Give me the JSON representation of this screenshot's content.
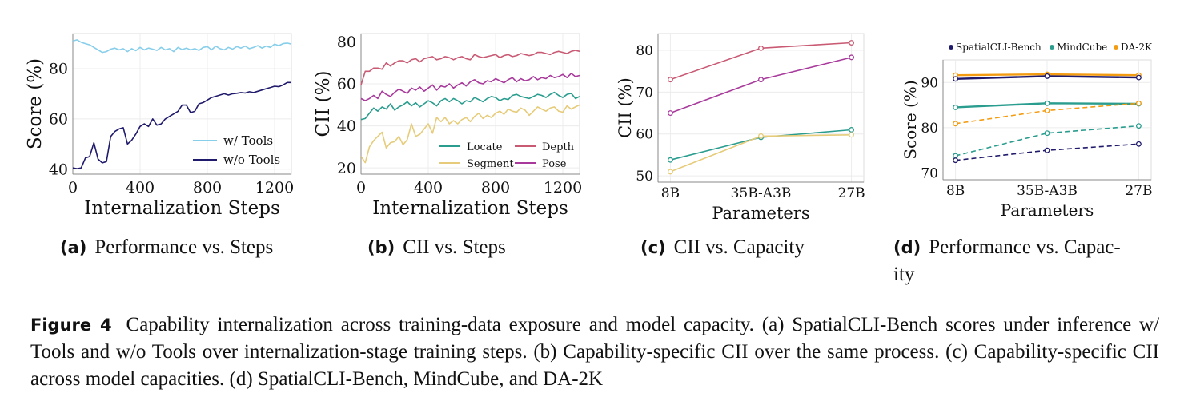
{
  "figure": {
    "tag": "Figure 4",
    "caption_lines": [
      "Capability internalization across training-data exposure and model capacity. (a) SpatialCLI-Bench scores",
      "under inference w/ Tools and w/o Tools over internalization-stage training steps. (b) Capability-specific CII over",
      "the same process. (c) Capability-specific CII across model capacities. (d) SpatialCLI-Bench, MindCube, and DA-2K"
    ]
  },
  "subfigures": [
    {
      "letter": "(a)",
      "title": "Performance vs. Steps"
    },
    {
      "letter": "(b)",
      "title": "CII vs. Steps"
    },
    {
      "letter": "(c)",
      "title": "CII vs. Capacity"
    },
    {
      "letter": "(d)",
      "title_line1": "Performance vs. Capac-",
      "title_line2": "ity"
    }
  ],
  "chart_data": [
    {
      "type": "line",
      "xlabel": "Internalization Steps",
      "ylabel": "Score (%)",
      "xlim": [
        0,
        1300
      ],
      "ylim": [
        38,
        94
      ],
      "xticks": [
        0,
        400,
        800,
        1200
      ],
      "yticks": [
        40,
        60,
        80
      ],
      "grid": true,
      "legend_position": "lower-right",
      "series": [
        {
          "name": "w/ Tools",
          "color": "#87CEEB",
          "x": [
            0,
            25,
            50,
            75,
            100,
            125,
            150,
            175,
            200,
            225,
            250,
            275,
            300,
            325,
            350,
            375,
            400,
            425,
            450,
            475,
            500,
            525,
            550,
            575,
            600,
            625,
            650,
            675,
            700,
            725,
            750,
            775,
            800,
            825,
            850,
            875,
            900,
            925,
            950,
            975,
            1000,
            1025,
            1050,
            1075,
            1100,
            1125,
            1150,
            1175,
            1200,
            1225,
            1250,
            1275,
            1300
          ],
          "y": [
            91,
            91.5,
            90.5,
            90,
            89.5,
            88.5,
            87.5,
            86.5,
            86.8,
            87.8,
            88.2,
            87.5,
            88,
            86.8,
            88,
            87.2,
            88.5,
            87.5,
            88.2,
            87.8,
            87.3,
            88.5,
            87.5,
            88,
            86.8,
            88.5,
            87.6,
            88.2,
            87.5,
            88,
            87.3,
            88.5,
            88.8,
            87.5,
            89,
            88,
            87.5,
            88.5,
            87.8,
            88.8,
            88.2,
            89,
            88,
            88.5,
            89.2,
            88.2,
            89,
            88.5,
            89.8,
            89.2,
            90,
            90.2,
            89.8
          ]
        },
        {
          "name": "w/o Tools",
          "color": "#1f1a6b",
          "x": [
            0,
            25,
            50,
            75,
            100,
            125,
            150,
            175,
            200,
            225,
            250,
            275,
            300,
            325,
            350,
            375,
            400,
            425,
            450,
            475,
            500,
            525,
            550,
            575,
            600,
            625,
            650,
            675,
            700,
            725,
            750,
            775,
            800,
            825,
            850,
            875,
            900,
            925,
            950,
            975,
            1000,
            1025,
            1050,
            1075,
            1100,
            1125,
            1150,
            1175,
            1200,
            1225,
            1250,
            1275,
            1300
          ],
          "y": [
            40.5,
            40.2,
            40.5,
            44.5,
            45,
            50.5,
            44,
            42.5,
            43,
            53,
            55,
            56,
            56.5,
            50,
            51.5,
            54,
            57,
            58,
            57,
            60,
            57.5,
            58,
            60,
            61,
            62,
            63,
            65.5,
            65.5,
            62.5,
            63,
            66,
            66.5,
            67.5,
            68.5,
            69,
            69.5,
            70,
            69.5,
            70,
            70.2,
            70.5,
            70.3,
            70.8,
            70.5,
            71,
            71.5,
            72,
            72.5,
            73,
            72.8,
            73.5,
            74.5,
            74.5
          ]
        }
      ]
    },
    {
      "type": "line",
      "xlabel": "Internalization Steps",
      "ylabel": "CII (%)",
      "xlim": [
        0,
        1300
      ],
      "ylim": [
        17,
        84
      ],
      "xticks": [
        0,
        400,
        800,
        1200
      ],
      "yticks": [
        20,
        40,
        60,
        80
      ],
      "grid": true,
      "legend_position": "lower-right",
      "series": [
        {
          "name": "Locate",
          "color": "#2a9d8f",
          "x": [
            0,
            25,
            50,
            75,
            100,
            125,
            150,
            175,
            200,
            225,
            250,
            275,
            300,
            325,
            350,
            375,
            400,
            425,
            450,
            475,
            500,
            525,
            550,
            575,
            600,
            625,
            650,
            675,
            700,
            725,
            750,
            775,
            800,
            825,
            850,
            875,
            900,
            925,
            950,
            975,
            1000,
            1025,
            1050,
            1075,
            1100,
            1125,
            1150,
            1175,
            1200,
            1225,
            1250,
            1275,
            1300
          ],
          "y": [
            43,
            43.5,
            46,
            48.5,
            47,
            49,
            48,
            50.5,
            47.5,
            49,
            50,
            51.5,
            49.5,
            51,
            49,
            50.5,
            52,
            51,
            49.5,
            52,
            53,
            51.5,
            53,
            52,
            50.5,
            52,
            51.5,
            53.5,
            52.5,
            51.5,
            53,
            54,
            53.5,
            52,
            53,
            52.5,
            54.5,
            55,
            54,
            53.5,
            53,
            54,
            55,
            54.5,
            53.5,
            55,
            56,
            54.5,
            53.5,
            55,
            55.5,
            53,
            54
          ]
        },
        {
          "name": "Depth",
          "color": "#c95a74",
          "x": [
            0,
            25,
            50,
            75,
            100,
            125,
            150,
            175,
            200,
            225,
            250,
            275,
            300,
            325,
            350,
            375,
            400,
            425,
            450,
            475,
            500,
            525,
            550,
            575,
            600,
            625,
            650,
            675,
            700,
            725,
            750,
            775,
            800,
            825,
            850,
            875,
            900,
            925,
            950,
            975,
            1000,
            1025,
            1050,
            1075,
            1100,
            1125,
            1150,
            1175,
            1200,
            1225,
            1250,
            1275,
            1300
          ],
          "y": [
            59.5,
            66,
            66,
            67.5,
            67.5,
            67,
            70,
            68.5,
            70,
            71,
            71,
            70,
            71.5,
            72,
            70.5,
            72,
            72.5,
            73,
            71.5,
            72,
            73,
            72.5,
            71.5,
            72.5,
            73,
            72,
            71.5,
            74,
            73,
            72.5,
            73,
            73.5,
            74,
            72.5,
            73.5,
            74,
            73,
            73.5,
            74.5,
            74,
            73.5,
            74,
            75,
            75,
            74.5,
            74,
            75,
            75.5,
            75,
            74.5,
            75.5,
            76,
            75.5
          ]
        },
        {
          "name": "Segment",
          "color": "#e6cc7a",
          "x": [
            0,
            25,
            50,
            75,
            100,
            125,
            150,
            175,
            200,
            225,
            250,
            275,
            300,
            325,
            350,
            375,
            400,
            425,
            450,
            475,
            500,
            525,
            550,
            575,
            600,
            625,
            650,
            675,
            700,
            725,
            750,
            775,
            800,
            825,
            850,
            875,
            900,
            925,
            950,
            975,
            1000,
            1025,
            1050,
            1075,
            1100,
            1125,
            1150,
            1175,
            1200,
            1225,
            1250,
            1275,
            1300
          ],
          "y": [
            25.5,
            22.5,
            30,
            33,
            35,
            37,
            29.5,
            32,
            32.5,
            35,
            31,
            33.5,
            41,
            35,
            36,
            38.5,
            41,
            36.5,
            44,
            42,
            44,
            41,
            42.5,
            41,
            43,
            44,
            42,
            44.5,
            46,
            43.5,
            45,
            44,
            46,
            47,
            45.5,
            48,
            47,
            46.5,
            48.5,
            47.5,
            45,
            47,
            49,
            48,
            47,
            48.5,
            49,
            47,
            46.5,
            49.5,
            48,
            49,
            50
          ]
        },
        {
          "name": "Pose",
          "color": "#a83a9c",
          "x": [
            0,
            25,
            50,
            75,
            100,
            125,
            150,
            175,
            200,
            225,
            250,
            275,
            300,
            325,
            350,
            375,
            400,
            425,
            450,
            475,
            500,
            525,
            550,
            575,
            600,
            625,
            650,
            675,
            700,
            725,
            750,
            775,
            800,
            825,
            850,
            875,
            900,
            925,
            950,
            975,
            1000,
            1025,
            1050,
            1075,
            1100,
            1125,
            1150,
            1175,
            1200,
            1225,
            1250,
            1275,
            1300
          ],
          "y": [
            53,
            52,
            53,
            54.5,
            53,
            56.5,
            55,
            54,
            56,
            57.5,
            56.5,
            55.5,
            58,
            57,
            58.5,
            56.5,
            58,
            59.5,
            57,
            59,
            58.5,
            60,
            58,
            59.5,
            60.5,
            59,
            61,
            62,
            60.5,
            60,
            61.5,
            61,
            62.5,
            61.5,
            60.5,
            62,
            63,
            61,
            62.5,
            61.5,
            62,
            63.5,
            62,
            63,
            62.5,
            64,
            63,
            63.5,
            64.5,
            63,
            65,
            63.5,
            64
          ]
        }
      ]
    },
    {
      "type": "line",
      "xlabel": "Parameters",
      "ylabel": "CII (%)",
      "categories": [
        "8B",
        "35B-A3B",
        "27B"
      ],
      "ylim": [
        48.5,
        84
      ],
      "yticks": [
        50,
        60,
        70,
        80
      ],
      "grid": true,
      "series": [
        {
          "name": "Depth",
          "color": "#c95a74",
          "values": [
            73,
            80.5,
            81.8
          ]
        },
        {
          "name": "Pose",
          "color": "#a83a9c",
          "values": [
            65,
            73,
            78.3
          ]
        },
        {
          "name": "Locate",
          "color": "#2a9d8f",
          "values": [
            53.8,
            59.2,
            61
          ]
        },
        {
          "name": "Segment",
          "color": "#e6cc7a",
          "values": [
            51,
            59.5,
            59.8
          ]
        }
      ]
    },
    {
      "type": "line",
      "xlabel": "Parameters",
      "ylabel": "Score (%)",
      "categories": [
        "8B",
        "35B-A3B",
        "27B"
      ],
      "ylim": [
        68.5,
        95
      ],
      "yticks": [
        70,
        80,
        90
      ],
      "grid": true,
      "legend_position": "top",
      "legend": [
        "SpatialCLI-Bench",
        "MindCube",
        "DA-2K"
      ],
      "series": [
        {
          "name": "DA-2K",
          "color": "#f39c12",
          "style": "solid",
          "values": [
            91.6,
            91.8,
            91.6
          ]
        },
        {
          "name": "SpatialCLI-Bench",
          "color": "#1f1a6b",
          "style": "solid",
          "values": [
            90.8,
            91.4,
            91.1
          ]
        },
        {
          "name": "MindCube",
          "color": "#2a9d8f",
          "style": "solid",
          "values": [
            84.5,
            85.4,
            85.3
          ]
        },
        {
          "name": "DA-2K",
          "color": "#f39c12",
          "style": "dashed",
          "values": [
            80.9,
            83.8,
            85.4
          ]
        },
        {
          "name": "MindCube",
          "color": "#2a9d8f",
          "style": "dashed",
          "values": [
            73.8,
            78.8,
            80.4
          ]
        },
        {
          "name": "SpatialCLI-Bench",
          "color": "#1f1a6b",
          "style": "dashed",
          "values": [
            72.8,
            75,
            76.4
          ]
        }
      ]
    }
  ]
}
